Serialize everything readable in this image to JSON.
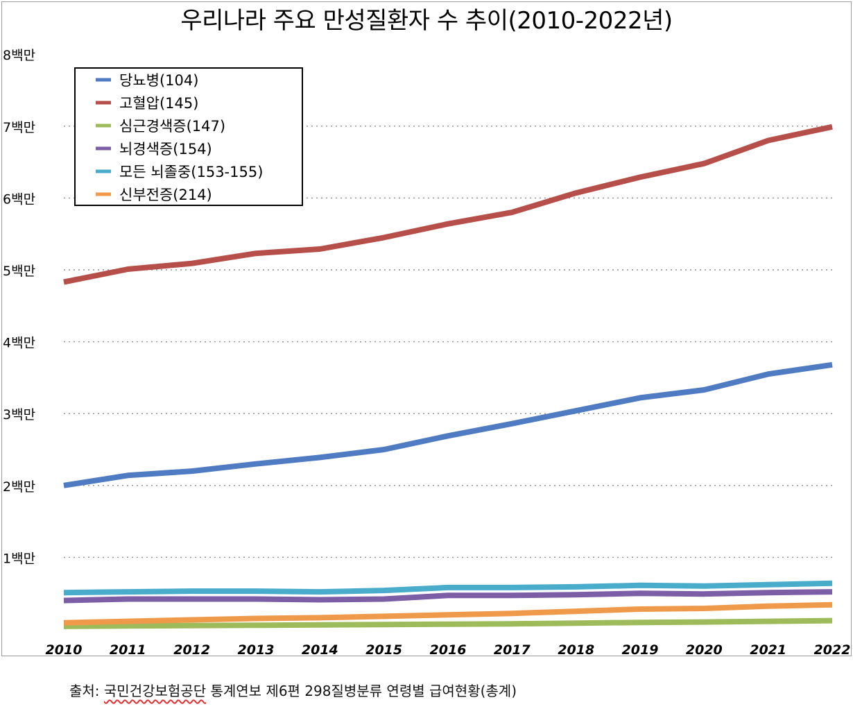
{
  "chart_data": {
    "type": "line",
    "title": "우리나라 주요 만성질환자 수 추이(2010-2022년)",
    "xlabel": "",
    "ylabel": "",
    "categories": [
      "2010",
      "2011",
      "2012",
      "2013",
      "2014",
      "2015",
      "2016",
      "2017",
      "2018",
      "2019",
      "2020",
      "2021",
      "2022"
    ],
    "yticks": [
      {
        "value": 1000000,
        "label": "1백만"
      },
      {
        "value": 2000000,
        "label": "2백만"
      },
      {
        "value": 3000000,
        "label": "3백만"
      },
      {
        "value": 4000000,
        "label": "4백만"
      },
      {
        "value": 5000000,
        "label": "5백만"
      },
      {
        "value": 6000000,
        "label": "6백만"
      },
      {
        "value": 7000000,
        "label": "7백만"
      },
      {
        "value": 8000000,
        "label": "8백만"
      }
    ],
    "ylim": [
      0,
      8000000
    ],
    "grid": "horizontal dotted",
    "legend_position": "top-left",
    "series": [
      {
        "name": "당뇨병(104)",
        "color": "#4f7bc2",
        "values": [
          2000000,
          2140000,
          2200000,
          2300000,
          2390000,
          2500000,
          2690000,
          2860000,
          3040000,
          3220000,
          3330000,
          3550000,
          3680000
        ]
      },
      {
        "name": "고혈압(145)",
        "color": "#b64e4a",
        "values": [
          4830000,
          5010000,
          5090000,
          5230000,
          5290000,
          5450000,
          5640000,
          5800000,
          6070000,
          6290000,
          6480000,
          6800000,
          6990000
        ]
      },
      {
        "name": "심근경색증(147)",
        "color": "#9dbb5a",
        "values": [
          40000,
          45000,
          50000,
          55000,
          60000,
          65000,
          70000,
          75000,
          85000,
          95000,
          100000,
          110000,
          120000
        ]
      },
      {
        "name": "뇌경색증(154)",
        "color": "#7b5ea5",
        "values": [
          400000,
          420000,
          420000,
          420000,
          410000,
          420000,
          470000,
          470000,
          480000,
          500000,
          490000,
          510000,
          520000
        ]
      },
      {
        "name": "모든 뇌졸중(153-155)",
        "color": "#4aaccb",
        "values": [
          510000,
          520000,
          530000,
          530000,
          520000,
          540000,
          580000,
          580000,
          590000,
          610000,
          600000,
          620000,
          640000
        ]
      },
      {
        "name": "신부전증(214)",
        "color": "#ef9a4a",
        "values": [
          90000,
          110000,
          130000,
          150000,
          160000,
          180000,
          200000,
          220000,
          250000,
          280000,
          290000,
          320000,
          340000
        ]
      }
    ]
  },
  "source_prefix": "출처: ",
  "source_org": "국민건강보험공단",
  "source_rest": " 통계연보 제6편 298질병분류 연령별 급여현황(총계)"
}
